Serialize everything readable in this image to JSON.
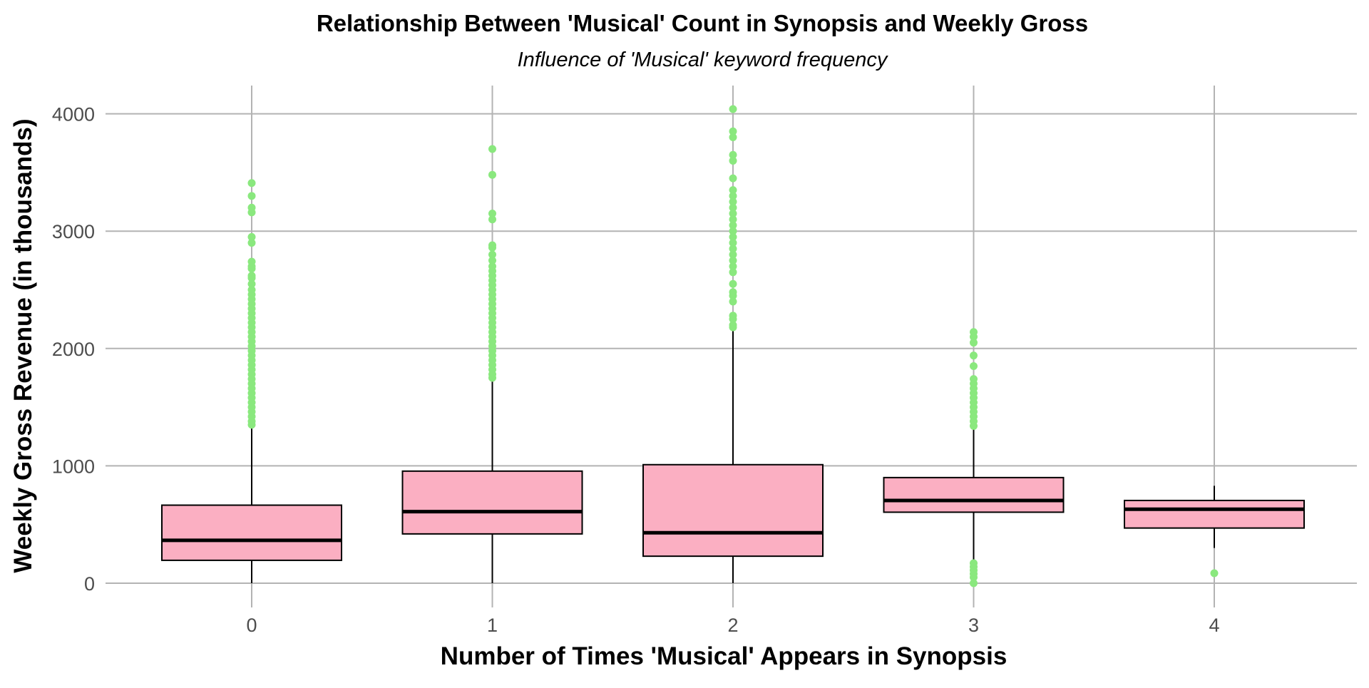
{
  "chart_data": {
    "type": "boxplot",
    "title": "Relationship Between 'Musical' Count in Synopsis and Weekly Gross",
    "subtitle": "Influence of 'Musical' keyword frequency",
    "xlabel": "Number of Times 'Musical' Appears in Synopsis",
    "ylabel": "Weekly Gross Revenue (in thousands)",
    "ylim": [
      -230,
      4260
    ],
    "y_ticks": [
      0,
      1000,
      2000,
      3000,
      4000
    ],
    "grid": true,
    "colors": {
      "box_fill": "#FBAFC2",
      "box_stroke": "#000000",
      "outlier": "#8AE87E",
      "grid": "#B3B3B3",
      "text": "#000000",
      "tick_text": "#4D4D4D"
    },
    "categories": [
      "0",
      "1",
      "2",
      "3",
      "4"
    ],
    "boxes": [
      {
        "category": "0",
        "q1": 195,
        "median": 365,
        "q3": 665,
        "whisker_low": 0,
        "whisker_high": 1340,
        "outliers": [
          1350,
          1380,
          1420,
          1460,
          1500,
          1540,
          1580,
          1620,
          1660,
          1700,
          1740,
          1780,
          1820,
          1860,
          1900,
          1940,
          1980,
          2020,
          2060,
          2100,
          2140,
          2180,
          2220,
          2260,
          2300,
          2340,
          2380,
          2420,
          2460,
          2500,
          2550,
          2600,
          2620,
          2680,
          2700,
          2740,
          2900,
          2950,
          3160,
          3200,
          3300,
          3410
        ]
      },
      {
        "category": "1",
        "q1": 420,
        "median": 610,
        "q3": 955,
        "whisker_low": 0,
        "whisker_high": 1740,
        "outliers": [
          1750,
          1780,
          1820,
          1860,
          1900,
          1940,
          1980,
          2020,
          2060,
          2100,
          2140,
          2180,
          2220,
          2260,
          2300,
          2340,
          2380,
          2420,
          2460,
          2500,
          2540,
          2580,
          2620,
          2660,
          2700,
          2750,
          2800,
          2860,
          2880,
          3100,
          3150,
          3480,
          3700
        ]
      },
      {
        "category": "2",
        "q1": 230,
        "median": 430,
        "q3": 1010,
        "whisker_low": 0,
        "whisker_high": 2160,
        "outliers": [
          2180,
          2200,
          2250,
          2280,
          2400,
          2450,
          2480,
          2550,
          2650,
          2700,
          2750,
          2800,
          2850,
          2900,
          2950,
          3000,
          3050,
          3100,
          3150,
          3200,
          3250,
          3300,
          3350,
          3450,
          3600,
          3650,
          3800,
          3850,
          4040
        ]
      },
      {
        "category": "3",
        "q1": 605,
        "median": 705,
        "q3": 900,
        "whisker_low": 170,
        "whisker_high": 1320,
        "outliers": [
          0,
          50,
          80,
          110,
          140,
          170,
          1340,
          1380,
          1420,
          1460,
          1500,
          1540,
          1580,
          1620,
          1660,
          1700,
          1740,
          1850,
          1940,
          2050,
          2100,
          2140
        ]
      },
      {
        "category": "4",
        "q1": 470,
        "median": 630,
        "q3": 705,
        "whisker_low": 300,
        "whisker_high": 830,
        "outliers": [
          85
        ]
      }
    ]
  }
}
